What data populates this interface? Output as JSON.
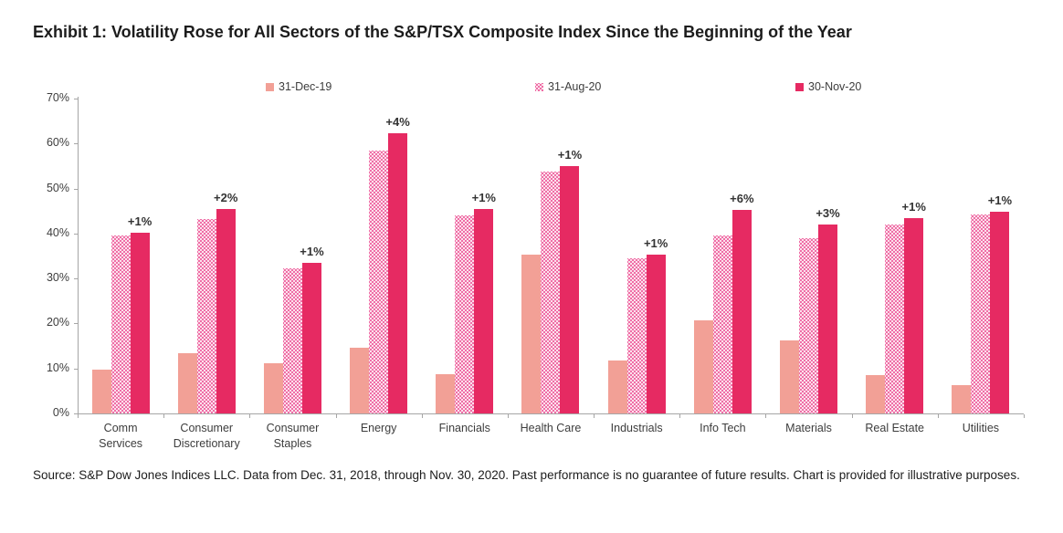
{
  "title": "Exhibit 1: Volatility Rose for All Sectors of the S&P/TSX Composite Index Since the Beginning of the Year",
  "source": "Source: S&P Dow Jones Indices LLC. Data from Dec. 31, 2018, through Nov. 30, 2020. Past performance is no guarantee of future results. Chart is provided for illustrative purposes.",
  "colors": {
    "dec_series": "#f2a096",
    "aug_series_dot": "#ef6ea6",
    "nov_series": "#e62a62",
    "axis": "#a6a6a6",
    "text": "#3d3d3d"
  },
  "chart_data": {
    "type": "bar",
    "title": "Exhibit 1: Volatility Rose for All Sectors of the S&P/TSX Composite Index Since the Beginning of the Year",
    "categories": [
      "Comm Services",
      "Consumer Discretionary",
      "Consumer Staples",
      "Energy",
      "Financials",
      "Health Care",
      "Industrials",
      "Info Tech",
      "Materials",
      "Real Estate",
      "Utilities"
    ],
    "category_lines": [
      [
        "Comm",
        "Services"
      ],
      [
        "Consumer",
        "Discretionary"
      ],
      [
        "Consumer",
        "Staples"
      ],
      [
        "Energy"
      ],
      [
        "Financials"
      ],
      [
        "Health Care"
      ],
      [
        "Industrials"
      ],
      [
        "Info Tech"
      ],
      [
        "Materials"
      ],
      [
        "Real Estate"
      ],
      [
        "Utilities"
      ]
    ],
    "series": [
      {
        "name": "31-Dec-19",
        "pattern": "solid",
        "color": "#f2a096",
        "values": [
          9.7,
          13.4,
          11.2,
          14.7,
          8.8,
          35.3,
          11.7,
          20.8,
          16.3,
          8.6,
          6.2
        ]
      },
      {
        "name": "31-Aug-20",
        "pattern": "dotted",
        "color": "#ef6ea6",
        "values": [
          39.5,
          43.3,
          32.3,
          58.5,
          44.0,
          53.8,
          34.5,
          39.5,
          38.9,
          42.0,
          44.3
        ]
      },
      {
        "name": "30-Nov-20",
        "pattern": "solid",
        "color": "#e62a62",
        "values": [
          40.2,
          45.4,
          33.5,
          62.2,
          45.4,
          55.0,
          35.3,
          45.3,
          42.1,
          43.4,
          44.9
        ]
      }
    ],
    "annotations": [
      "+1%",
      "+2%",
      "+1%",
      "+4%",
      "+1%",
      "+1%",
      "+1%",
      "+6%",
      "+3%",
      "+1%",
      "+1%"
    ],
    "xlabel": "",
    "ylabel": "",
    "ylim": [
      0,
      70
    ],
    "yticks": [
      "0%",
      "10%",
      "20%",
      "30%",
      "40%",
      "50%",
      "60%",
      "70%"
    ],
    "grid": false,
    "legend_position": "top"
  }
}
